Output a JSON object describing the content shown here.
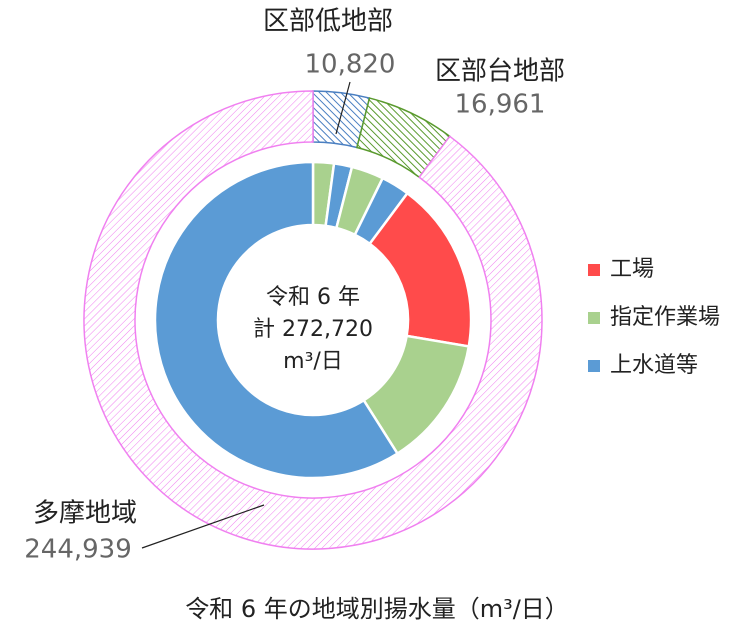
{
  "chart_data": {
    "type": "donut",
    "title": "令和 6 年の地域別揚水量（m³/日）",
    "center_text": [
      "令和 6 年",
      "計 272,720",
      "m³/日"
    ],
    "outer": {
      "categories": [
        "区部低地部",
        "区部台地部",
        "多摩地域"
      ],
      "values": [
        10820,
        16961,
        244939
      ],
      "value_labels": [
        "10,820",
        "16,961",
        "244,939"
      ],
      "colors": [
        "#4a7fc1",
        "#5a9a2e",
        "#f080f0"
      ]
    },
    "series": [
      {
        "name": "工場",
        "color": "#ff4b4b",
        "values": [
          0,
          0,
          47700
        ]
      },
      {
        "name": "指定作業場",
        "color": "#a9d18e",
        "values": [
          5800,
          9000,
          36400
        ]
      },
      {
        "name": "上水道等",
        "color": "#5b9bd5",
        "values": [
          5020,
          7961,
          160839
        ]
      }
    ],
    "legend": "right"
  }
}
